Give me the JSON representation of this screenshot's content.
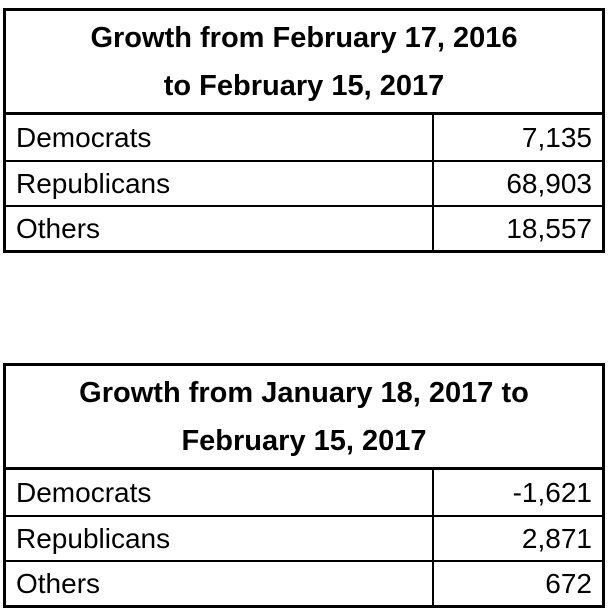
{
  "colors": {
    "text": "#000000",
    "border": "#000000",
    "background": "#ffffff"
  },
  "tables": [
    {
      "title_line1": "Growth from February 17, 2016",
      "title_line2": "to February 15, 2017",
      "rows": [
        {
          "label": "Democrats",
          "value": "7,135"
        },
        {
          "label": "Republicans",
          "value": "68,903"
        },
        {
          "label": "Others",
          "value": "18,557"
        }
      ]
    },
    {
      "title_line1": "Growth from January 18, 2017 to",
      "title_line2": "February 15, 2017",
      "rows": [
        {
          "label": "Democrats",
          "value": "-1,621"
        },
        {
          "label": "Republicans",
          "value": "2,871"
        },
        {
          "label": "Others",
          "value": "672"
        }
      ]
    }
  ],
  "chart_data": [
    {
      "type": "table",
      "title": "Growth from February 17, 2016 to February 15, 2017",
      "categories": [
        "Democrats",
        "Republicans",
        "Others"
      ],
      "values": [
        7135,
        68903,
        18557
      ]
    },
    {
      "type": "table",
      "title": "Growth from January 18, 2017 to February 15, 2017",
      "categories": [
        "Democrats",
        "Republicans",
        "Others"
      ],
      "values": [
        -1621,
        2871,
        672
      ]
    }
  ]
}
